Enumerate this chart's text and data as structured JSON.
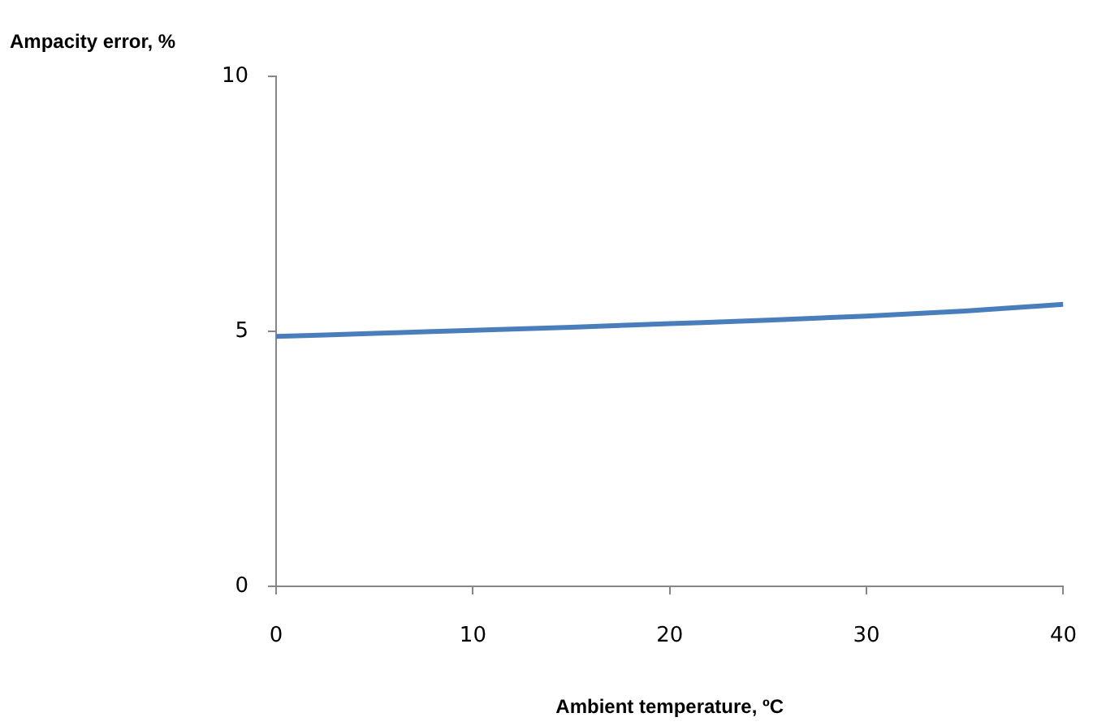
{
  "chart_data": {
    "type": "line",
    "xlabel": "Ambient temperature, ºC",
    "ylabel": "Ampacity error, %",
    "x": [
      0,
      5,
      10,
      15,
      20,
      25,
      30,
      35,
      40
    ],
    "series": [
      {
        "color": "#4a7ebb",
        "values": [
          4.9,
          4.96,
          5.02,
          5.08,
          5.15,
          5.22,
          5.3,
          5.4,
          5.53
        ]
      }
    ],
    "xlim": [
      0,
      40
    ],
    "xticks": [
      0,
      10,
      20,
      30,
      40
    ],
    "ylim": [
      0,
      10
    ],
    "yticks": [
      0,
      5,
      10
    ],
    "grid": false,
    "legend": false,
    "marker": "none",
    "line_style": "solid"
  }
}
